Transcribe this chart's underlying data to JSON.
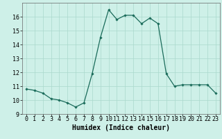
{
  "x": [
    0,
    1,
    2,
    3,
    4,
    5,
    6,
    7,
    8,
    9,
    10,
    11,
    12,
    13,
    14,
    15,
    16,
    17,
    18,
    19,
    20,
    21,
    22,
    23
  ],
  "y": [
    10.8,
    10.7,
    10.5,
    10.1,
    10.0,
    9.8,
    9.5,
    9.8,
    11.9,
    14.5,
    16.5,
    15.8,
    16.1,
    16.1,
    15.5,
    15.9,
    15.5,
    11.9,
    11.0,
    11.1,
    11.1,
    11.1,
    11.1,
    10.5
  ],
  "line_color": "#1a6b5a",
  "marker": "D",
  "marker_size": 1.8,
  "bg_color": "#cef0e8",
  "grid_color": "#aad8cc",
  "xlabel": "Humidex (Indice chaleur)",
  "xlabel_fontsize": 7,
  "tick_fontsize": 6,
  "ylim": [
    9,
    17
  ],
  "xlim": [
    -0.5,
    23.5
  ],
  "yticks": [
    9,
    10,
    11,
    12,
    13,
    14,
    15,
    16
  ],
  "xticks": [
    0,
    1,
    2,
    3,
    4,
    5,
    6,
    7,
    8,
    9,
    10,
    11,
    12,
    13,
    14,
    15,
    16,
    17,
    18,
    19,
    20,
    21,
    22,
    23
  ]
}
